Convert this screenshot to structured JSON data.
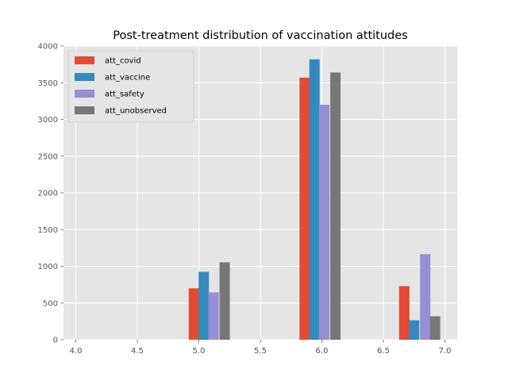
{
  "chart_data": {
    "type": "bar",
    "title": "Post-treatment distribution of vaccination attitudes",
    "xlabel": "",
    "ylabel": "",
    "xlim": [
      3.9,
      7.1
    ],
    "ylim": [
      0,
      4000
    ],
    "x_ticks": [
      "4.0",
      "4.5",
      "5.0",
      "5.5",
      "6.0",
      "6.5",
      "7.0"
    ],
    "y_ticks": [
      "0",
      "500",
      "1000",
      "1500",
      "2000",
      "2500",
      "3000",
      "3500",
      "4000"
    ],
    "grid": true,
    "legend_position": "top-left",
    "bin_edges": [
      4.92,
      5.16,
      5.82,
      6.06,
      6.63,
      6.88
    ],
    "series": [
      {
        "name": "att_covid",
        "color": "#E24A33",
        "x": [
          4.96,
          5.86,
          6.67
        ],
        "values": [
          700,
          3570,
          730
        ]
      },
      {
        "name": "att_vaccine",
        "color": "#348ABD",
        "x": [
          5.04,
          5.94,
          6.75
        ],
        "values": [
          925,
          3820,
          265
        ]
      },
      {
        "name": "att_safety",
        "color": "#988ED5",
        "x": [
          5.12,
          6.02,
          6.84
        ],
        "values": [
          645,
          3200,
          1165
        ]
      },
      {
        "name": "att_unobserved",
        "color": "#777777",
        "x": [
          5.21,
          6.11,
          6.92
        ],
        "values": [
          1055,
          3640,
          320
        ]
      }
    ],
    "bar_width": 0.084
  }
}
